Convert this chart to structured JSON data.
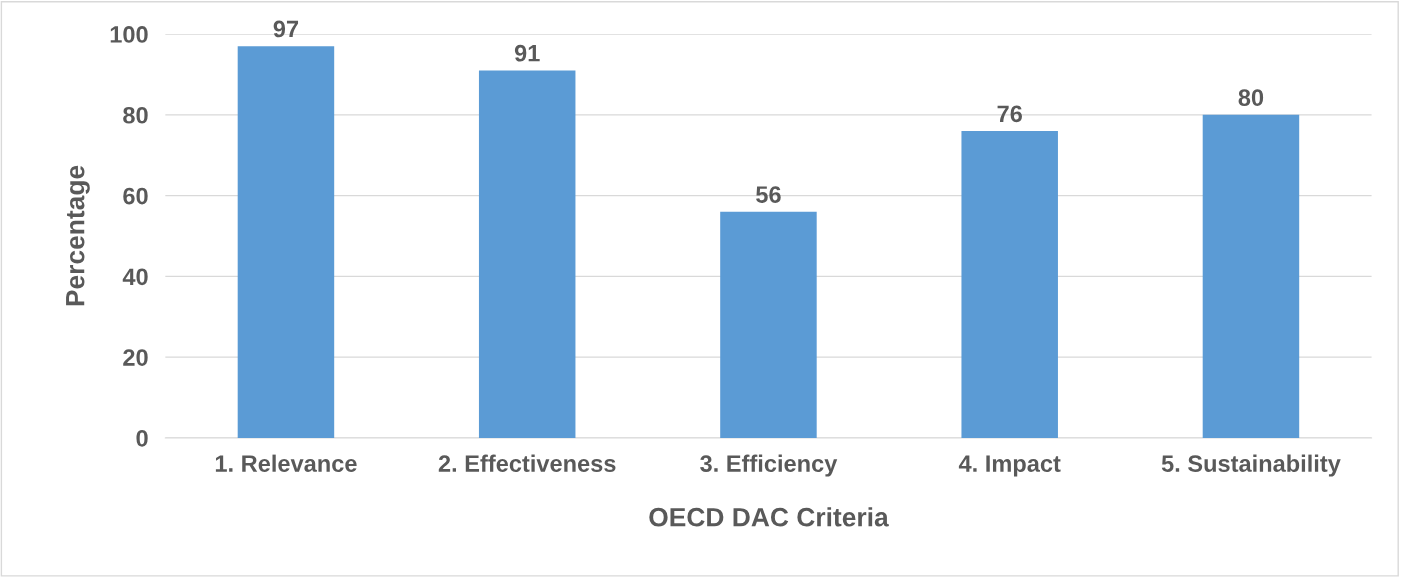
{
  "chart_data": {
    "type": "bar",
    "xlabel": "OECD DAC Criteria",
    "ylabel": "Percentage",
    "categories": [
      "1. Relevance",
      "2. Effectiveness",
      "3. Efficiency",
      "4. Impact",
      "5. Sustainability"
    ],
    "values": [
      97,
      91,
      56,
      76,
      80
    ],
    "color": "#5b9bd5",
    "ylim": [
      0,
      100
    ],
    "yticks": [
      0,
      20,
      40,
      60,
      80,
      100
    ],
    "grid": "y",
    "data_labels": true
  }
}
